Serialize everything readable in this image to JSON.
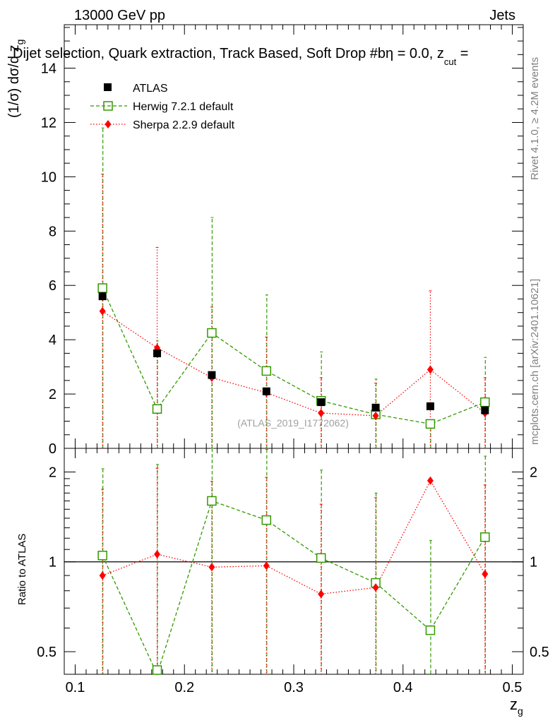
{
  "header": {
    "energy_label": "13000 GeV pp",
    "category_label": "Jets",
    "title": "Dijet selection, Quark extraction, Track Based, Soft Drop #bη = 0.0, z",
    "title_sub": "cut",
    "title_end": " ="
  },
  "side_labels": {
    "rivet": "Rivet 4.1.0, ≥ 4.2M events",
    "mcplots": "mcplots.cern.ch [arXiv:2401.10621]"
  },
  "watermark": "(ATLAS_2019_I1772062)",
  "legend": {
    "atlas": "ATLAS",
    "herwig": "Herwig 7.2.1 default",
    "sherpa": "Sherpa 2.2.9 default"
  },
  "colors": {
    "atlas": "#000000",
    "herwig": "#339900",
    "sherpa": "#ff0000",
    "ref_line": "#000000"
  },
  "chart_data": [
    {
      "type": "scatter",
      "panel": "main",
      "title": "Dijet selection, Quark extraction, Track Based, Soft Drop",
      "xlabel": "z_g",
      "ylabel": "(1/σ) dσ/d z_g",
      "xlim": [
        0.09,
        0.51
      ],
      "ylim": [
        0,
        15.6
      ],
      "x_ticks": [
        "0.1",
        "0.2",
        "0.3",
        "0.4",
        "0.5"
      ],
      "y_ticks": [
        "0",
        "2",
        "4",
        "6",
        "8",
        "10",
        "12",
        "14"
      ],
      "x": [
        0.125,
        0.175,
        0.225,
        0.275,
        0.325,
        0.375,
        0.425,
        0.475
      ],
      "series": [
        {
          "name": "ATLAS",
          "values": [
            5.6,
            3.5,
            2.7,
            2.1,
            1.7,
            1.5,
            1.55,
            1.4
          ],
          "err_up": [
            0,
            0,
            0,
            0,
            0,
            0,
            0,
            0
          ],
          "err_down": [
            0,
            0,
            0,
            0,
            0,
            0,
            0,
            0
          ]
        },
        {
          "name": "Herwig 7.2.1 default",
          "values": [
            5.9,
            1.45,
            4.25,
            2.85,
            1.75,
            1.25,
            0.9,
            1.7
          ],
          "err_up": [
            5.9,
            2.5,
            4.25,
            2.8,
            1.8,
            1.3,
            0,
            1.65
          ],
          "err_down": [
            5.9,
            1.45,
            4.25,
            2.85,
            1.75,
            1.25,
            0.9,
            1.7
          ]
        },
        {
          "name": "Sherpa 2.2.9 default",
          "values": [
            5.05,
            3.7,
            2.6,
            2.05,
            1.3,
            1.2,
            2.9,
            1.3
          ],
          "err_up": [
            5.05,
            3.7,
            2.6,
            2.05,
            1.3,
            1.2,
            2.9,
            1.3
          ],
          "err_down": [
            5.05,
            3.7,
            2.6,
            2.05,
            1.3,
            1.2,
            2.9,
            1.3
          ]
        }
      ]
    },
    {
      "type": "scatter",
      "panel": "ratio",
      "xlabel": "z_g",
      "ylabel": "Ratio to ATLAS",
      "xlim": [
        0.09,
        0.51
      ],
      "ylim": [
        0.42,
        2.4
      ],
      "yscale": "log",
      "y_ticks": [
        "0.5",
        "1",
        "2"
      ],
      "x": [
        0.125,
        0.175,
        0.225,
        0.275,
        0.325,
        0.375,
        0.425,
        0.475
      ],
      "series": [
        {
          "name": "Herwig 7.2.1 default",
          "values": [
            1.05,
            0.42,
            1.6,
            1.38,
            1.03,
            0.85,
            0.59,
            1.21
          ],
          "err_up": [
            1.0,
            1.7,
            1.0,
            1.0,
            1.0,
            0.85,
            0.59,
            1.05
          ],
          "err_down": [
            0.6,
            0.0,
            0.0,
            0.0,
            0.0,
            0.0,
            0.0,
            0.0
          ]
        },
        {
          "name": "Sherpa 2.2.9 default",
          "values": [
            0.9,
            1.06,
            0.96,
            0.97,
            0.78,
            0.82,
            1.87,
            0.91
          ],
          "err_up": [
            0.85,
            1.0,
            0.9,
            0.95,
            0.78,
            0.82,
            0.0,
            0.9
          ],
          "err_down": [
            0.0,
            0.0,
            0.0,
            0.0,
            0.0,
            0.0,
            0.0,
            0.0
          ]
        }
      ]
    }
  ]
}
